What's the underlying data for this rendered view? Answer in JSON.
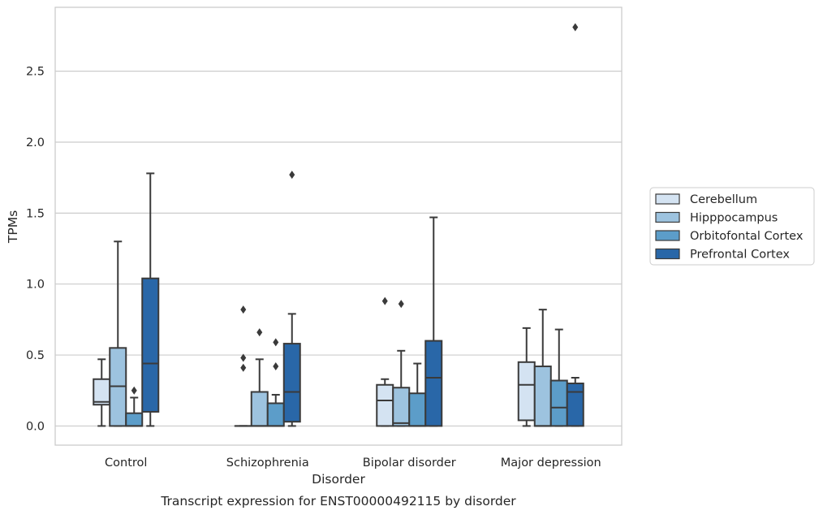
{
  "chart_data": {
    "type": "boxplot",
    "title": "",
    "caption": "Transcript expression for ENST00000492115 by disorder",
    "xlabel": "Disorder",
    "ylabel": "TPMs",
    "ylim": [
      -0.135,
      2.95
    ],
    "yticks": [
      "0.0",
      "0.5",
      "1.0",
      "1.5",
      "2.0",
      "2.5"
    ],
    "grid": "horizontal",
    "legend_position": "right",
    "categories": [
      "Control",
      "Schizophrenia",
      "Bipolar disorder",
      "Major depression"
    ],
    "series": [
      {
        "name": "Cerebellum",
        "color": "#d4e3f2",
        "boxes": [
          {
            "whisker_low": 0.0,
            "q1": 0.15,
            "median": 0.17,
            "q3": 0.33,
            "whisker_high": 0.47,
            "outliers": []
          },
          {
            "whisker_low": 0.0,
            "q1": 0.0,
            "median": 0.0,
            "q3": 0.0,
            "whisker_high": 0.0,
            "outliers": [
              0.82,
              0.48,
              0.41
            ]
          },
          {
            "whisker_low": 0.0,
            "q1": 0.0,
            "median": 0.18,
            "q3": 0.29,
            "whisker_high": 0.33,
            "outliers": [
              0.88
            ]
          },
          {
            "whisker_low": 0.0,
            "q1": 0.04,
            "median": 0.29,
            "q3": 0.45,
            "whisker_high": 0.69,
            "outliers": []
          }
        ]
      },
      {
        "name": "Hipppocampus",
        "color": "#9dc3df",
        "boxes": [
          {
            "whisker_low": 0.0,
            "q1": 0.0,
            "median": 0.28,
            "q3": 0.55,
            "whisker_high": 1.3,
            "outliers": []
          },
          {
            "whisker_low": 0.0,
            "q1": 0.0,
            "median": 0.0,
            "q3": 0.24,
            "whisker_high": 0.47,
            "outliers": [
              0.66
            ]
          },
          {
            "whisker_low": 0.0,
            "q1": 0.0,
            "median": 0.02,
            "q3": 0.27,
            "whisker_high": 0.53,
            "outliers": [
              0.86
            ]
          },
          {
            "whisker_low": 0.0,
            "q1": 0.0,
            "median": 0.0,
            "q3": 0.42,
            "whisker_high": 0.82,
            "outliers": []
          }
        ]
      },
      {
        "name": "Orbitofontal Cortex",
        "color": "#5c9dc9",
        "boxes": [
          {
            "whisker_low": 0.0,
            "q1": 0.0,
            "median": 0.0,
            "q3": 0.09,
            "whisker_high": 0.2,
            "outliers": [
              0.25
            ]
          },
          {
            "whisker_low": 0.0,
            "q1": 0.0,
            "median": 0.0,
            "q3": 0.16,
            "whisker_high": 0.22,
            "outliers": [
              0.59,
              0.42
            ]
          },
          {
            "whisker_low": 0.0,
            "q1": 0.0,
            "median": 0.0,
            "q3": 0.23,
            "whisker_high": 0.44,
            "outliers": []
          },
          {
            "whisker_low": 0.0,
            "q1": 0.0,
            "median": 0.13,
            "q3": 0.32,
            "whisker_high": 0.68,
            "outliers": []
          }
        ]
      },
      {
        "name": "Prefrontal Cortex",
        "color": "#2967a8",
        "boxes": [
          {
            "whisker_low": 0.0,
            "q1": 0.1,
            "median": 0.44,
            "q3": 1.04,
            "whisker_high": 1.78,
            "outliers": []
          },
          {
            "whisker_low": 0.0,
            "q1": 0.03,
            "median": 0.24,
            "q3": 0.58,
            "whisker_high": 0.79,
            "outliers": [
              1.77
            ]
          },
          {
            "whisker_low": 0.0,
            "q1": 0.0,
            "median": 0.34,
            "q3": 0.6,
            "whisker_high": 1.47,
            "outliers": []
          },
          {
            "whisker_low": 0.0,
            "q1": 0.0,
            "median": 0.24,
            "q3": 0.3,
            "whisker_high": 0.34,
            "outliers": [
              2.81
            ]
          }
        ]
      }
    ]
  }
}
